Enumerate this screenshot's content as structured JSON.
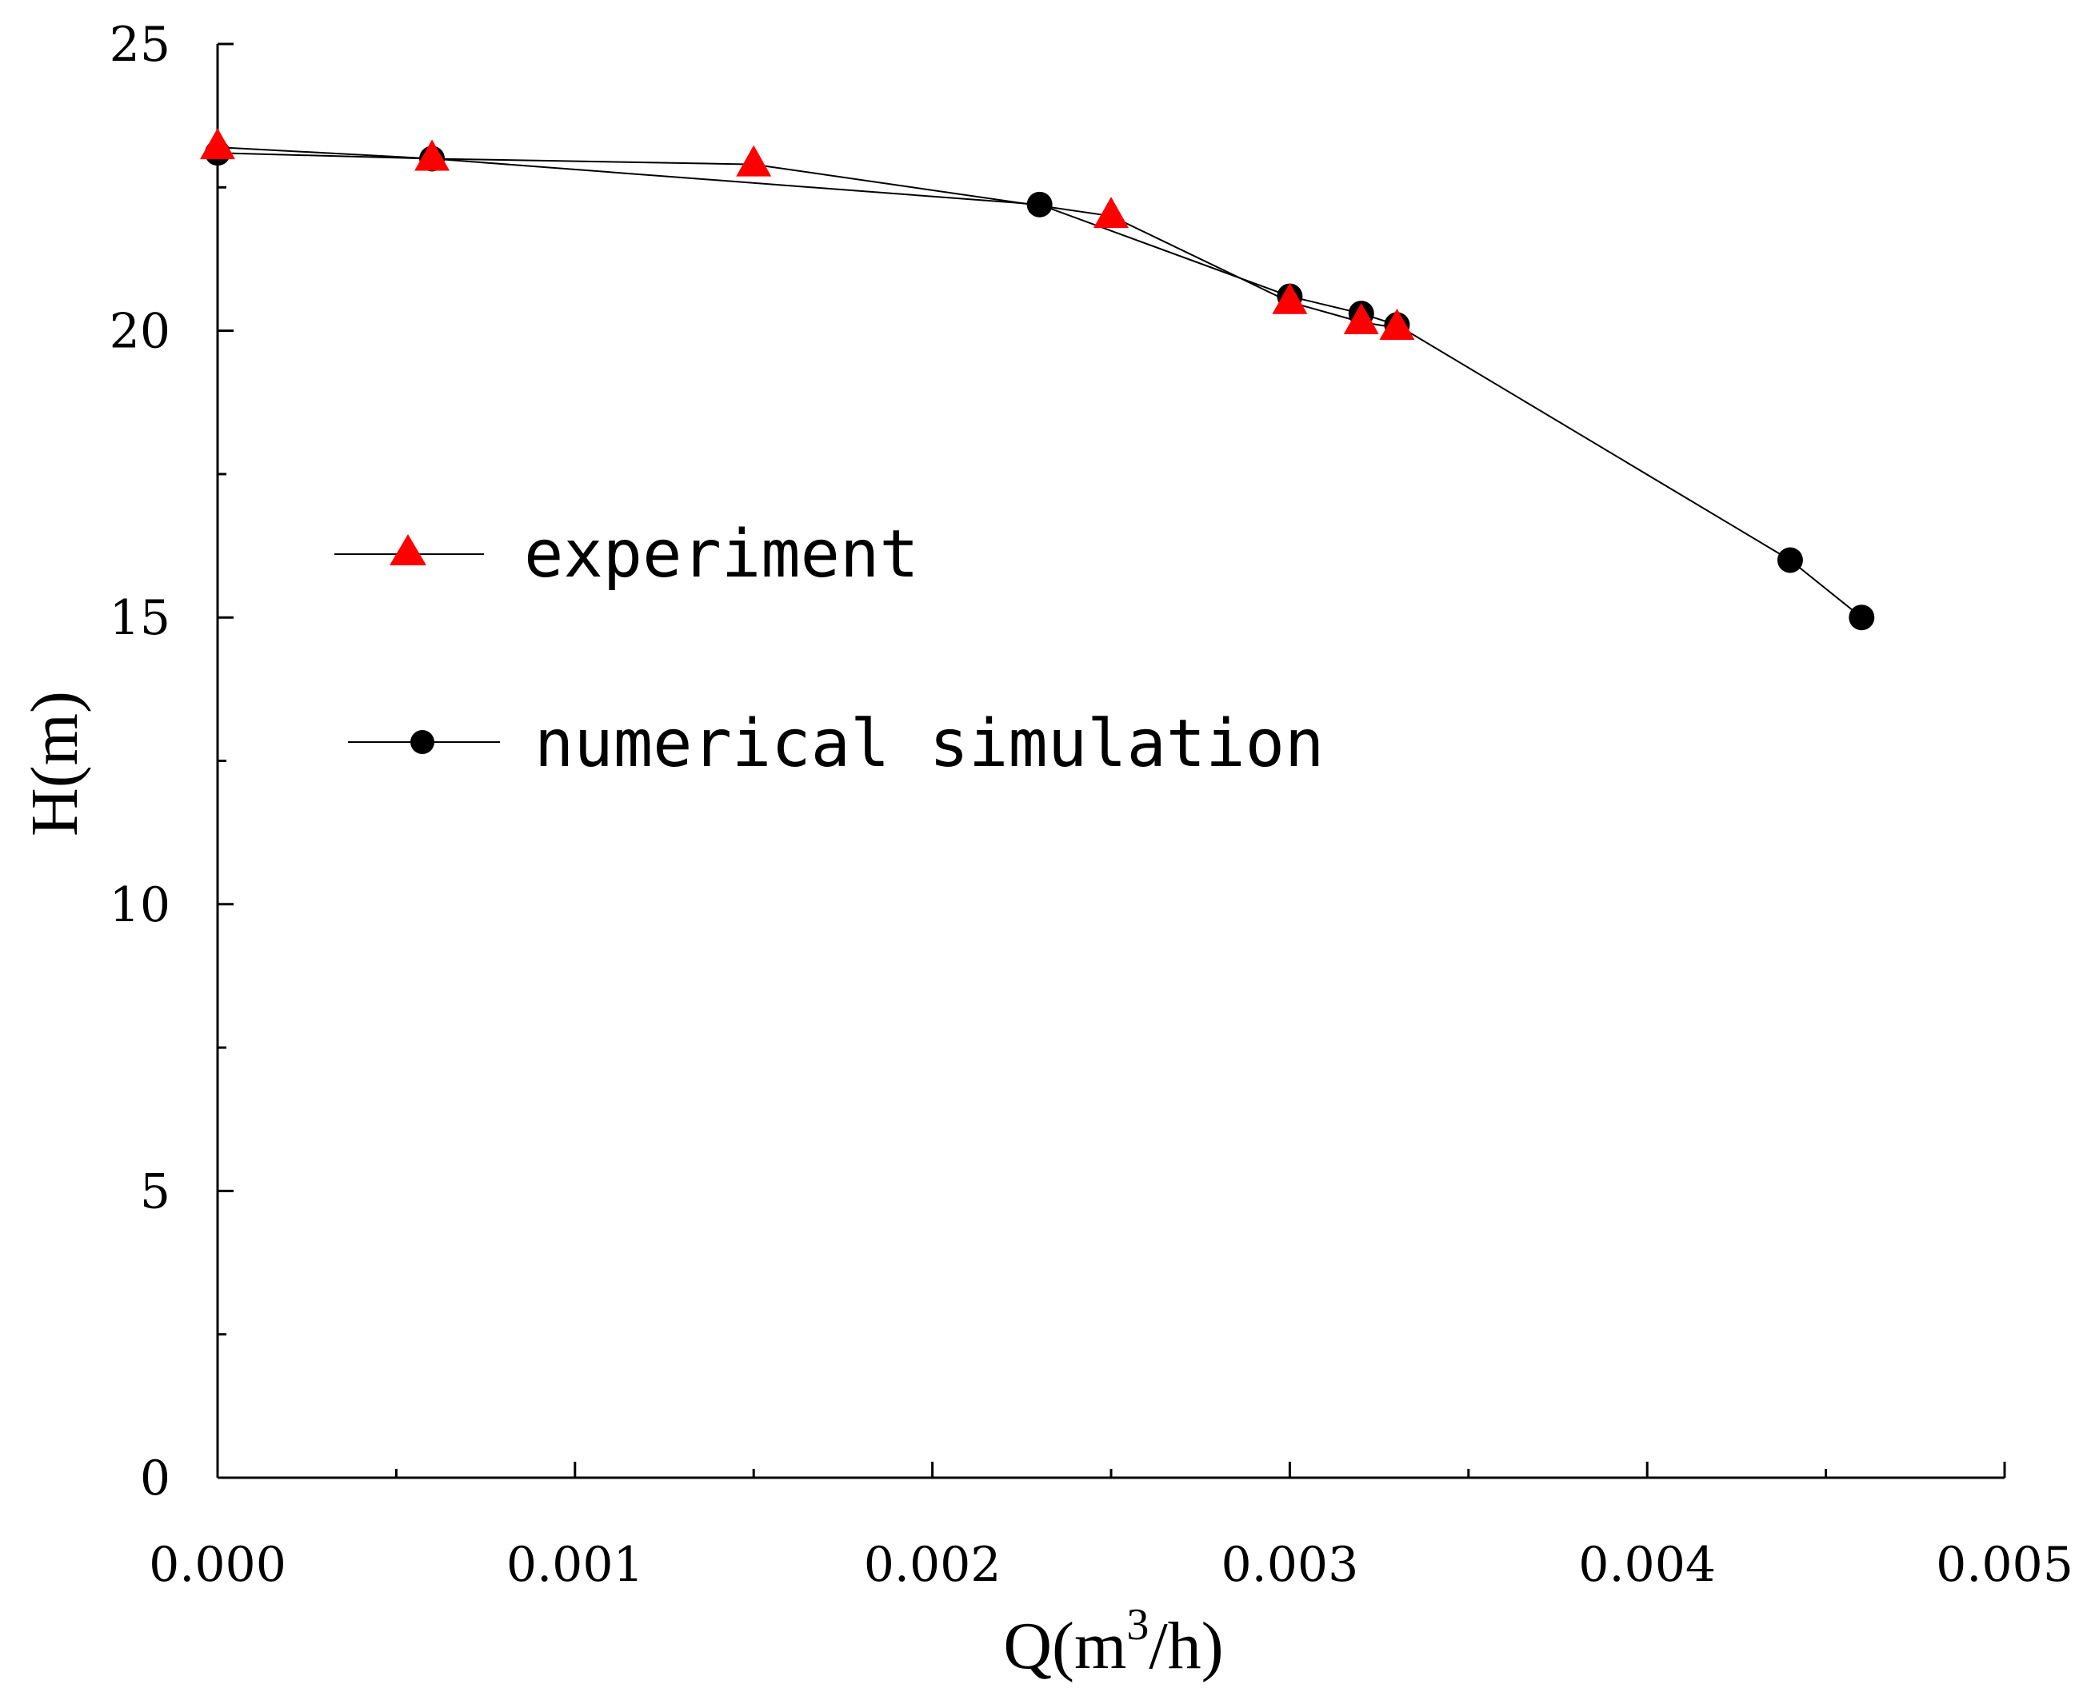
{
  "chart_data": {
    "type": "line",
    "title": "",
    "xlabel": "Q(m",
    "xlabel_sup": "3",
    "xlabel_tail": "/h)",
    "ylabel": "H(m)",
    "xlim": [
      0.0,
      0.005
    ],
    "ylim": [
      0,
      25
    ],
    "xticks": [
      "0.000",
      "0.001",
      "0.002",
      "0.003",
      "0.004",
      "0.005"
    ],
    "yticks": [
      "0",
      "5",
      "10",
      "15",
      "20",
      "25"
    ],
    "grid": false,
    "legend_position": "center-left",
    "series": [
      {
        "name": "experiment",
        "marker": "triangle",
        "color": "#ff0000",
        "x": [
          0.0,
          0.0006,
          0.0015,
          0.0025,
          0.003,
          0.0032,
          0.0033
        ],
        "y": [
          23.2,
          23.0,
          22.9,
          22.0,
          20.5,
          20.15,
          20.05
        ]
      },
      {
        "name": "numerical simulation",
        "marker": "circle",
        "color": "#000000",
        "x": [
          0.0,
          0.0006,
          0.0023,
          0.003,
          0.0032,
          0.0033,
          0.0044,
          0.0046
        ],
        "y": [
          23.1,
          23.0,
          22.2,
          20.6,
          20.3,
          20.1,
          16.0,
          15.0
        ]
      }
    ]
  }
}
